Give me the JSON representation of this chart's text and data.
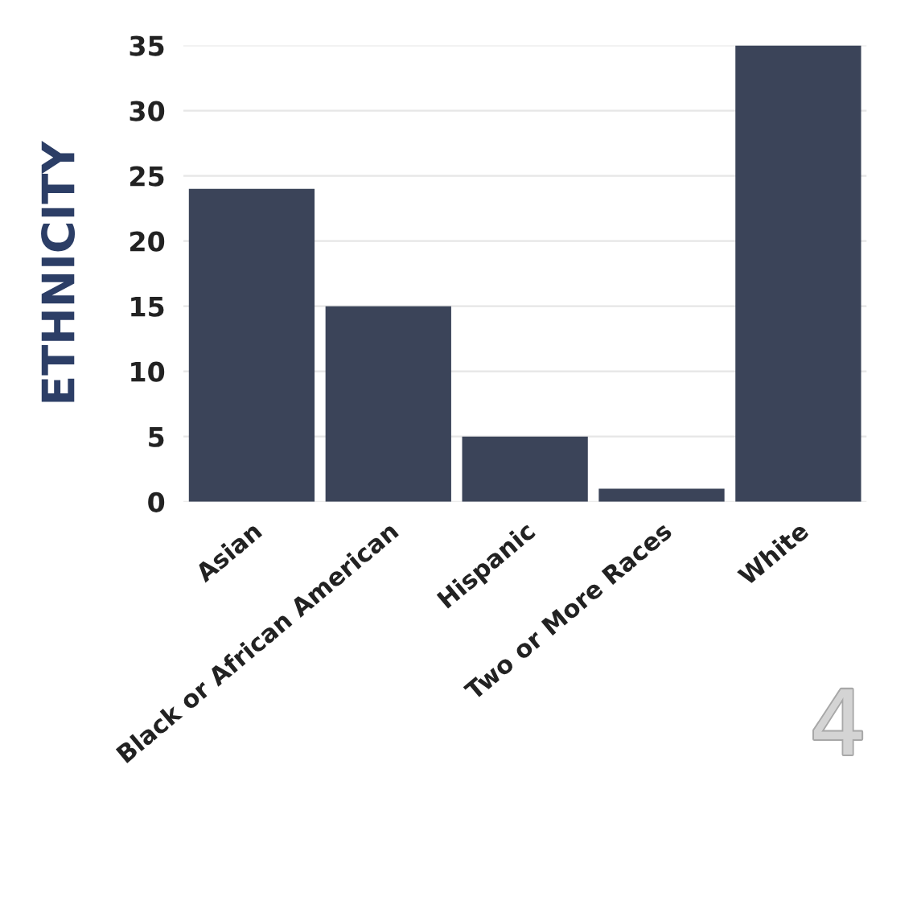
{
  "chart_data": {
    "type": "bar",
    "ylabel": "ETHNICITY",
    "categories": [
      "Asian",
      "Black or African American",
      "Hispanic",
      "Two or More Races",
      "White"
    ],
    "values": [
      24,
      15,
      5,
      1,
      35
    ],
    "color": "#3b4459",
    "ylim": [
      0,
      35
    ],
    "yticks": [
      0,
      5,
      10,
      15,
      20,
      25,
      30,
      35
    ],
    "grid": "y",
    "annotations": [
      "4"
    ]
  }
}
